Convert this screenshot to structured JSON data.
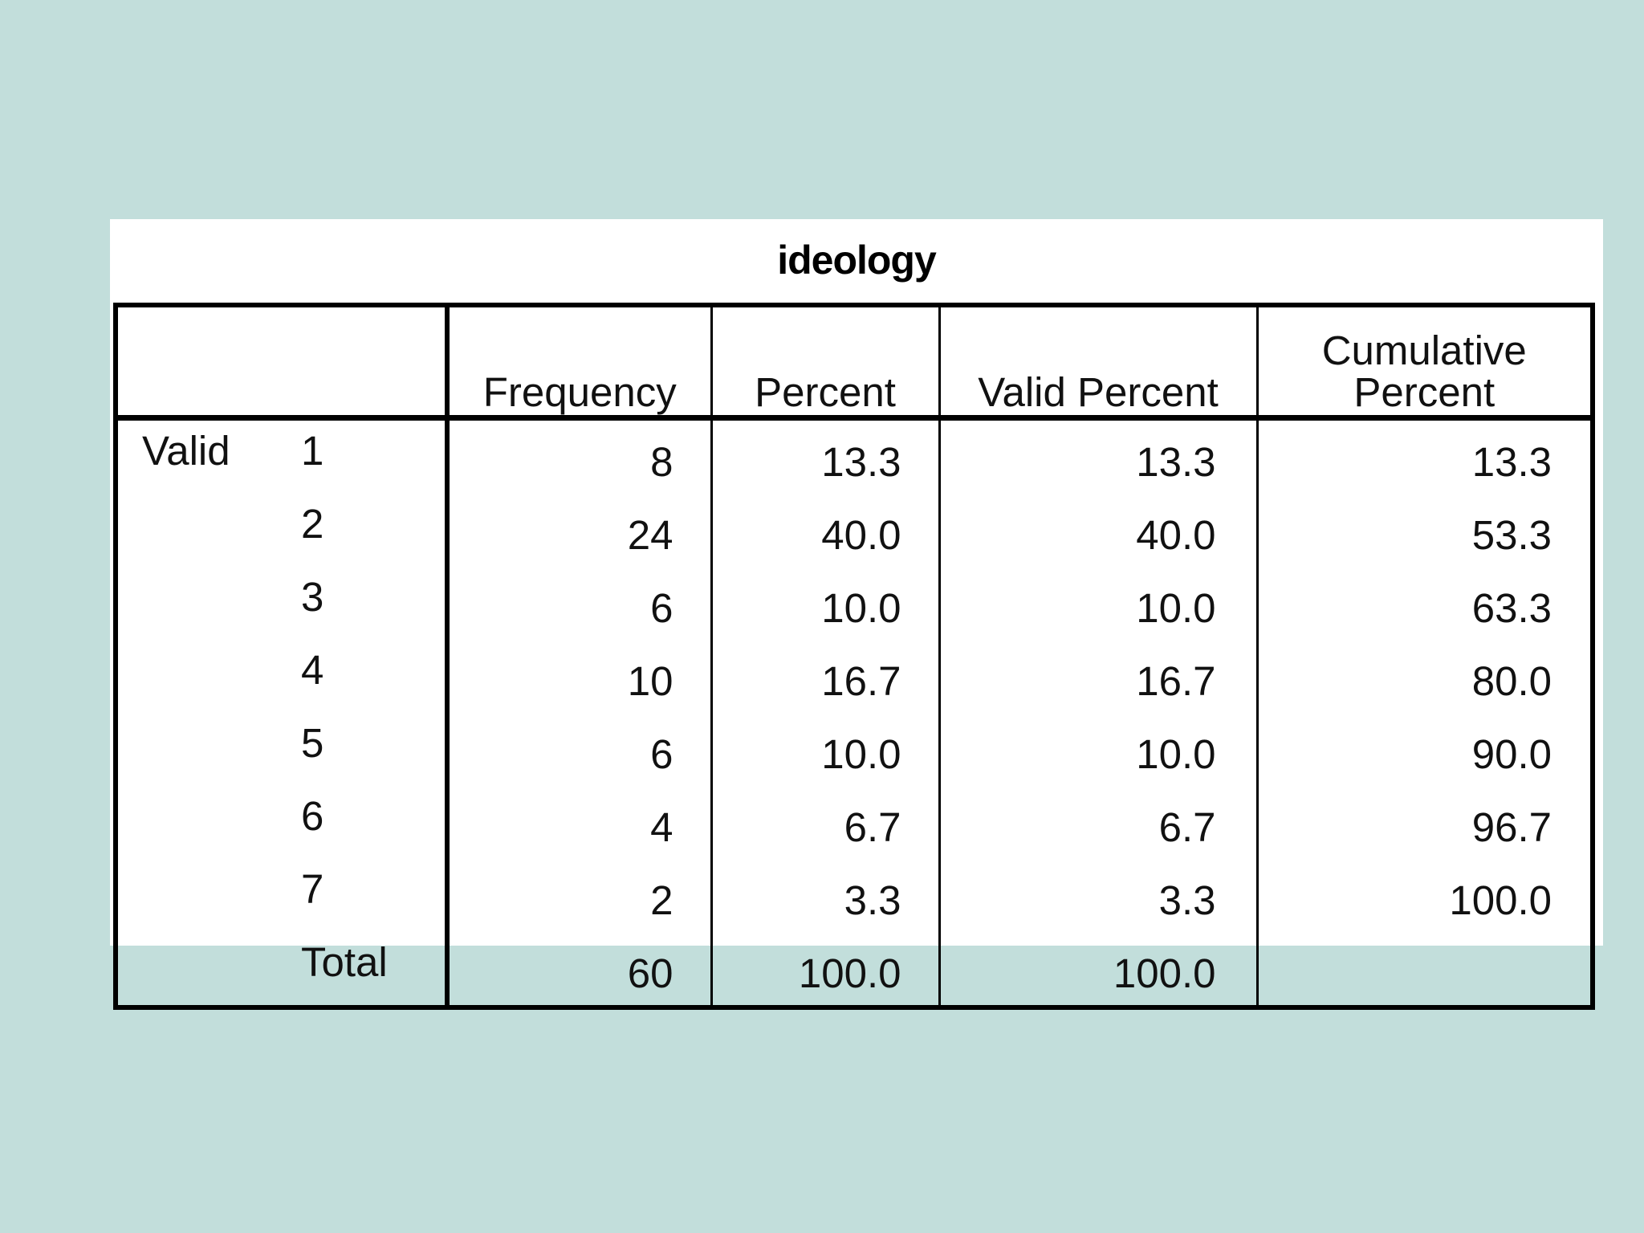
{
  "table": {
    "title": "ideology",
    "headers": {
      "frequency": "Frequency",
      "percent": "Percent",
      "valid_percent": "Valid Percent",
      "cumulative_line1": "Cumulative",
      "cumulative_line2": "Percent"
    },
    "group_label": "Valid",
    "rows": [
      {
        "value": "1",
        "frequency": "8",
        "percent": "13.3",
        "valid_percent": "13.3",
        "cumulative_percent": "13.3"
      },
      {
        "value": "2",
        "frequency": "24",
        "percent": "40.0",
        "valid_percent": "40.0",
        "cumulative_percent": "53.3"
      },
      {
        "value": "3",
        "frequency": "6",
        "percent": "10.0",
        "valid_percent": "10.0",
        "cumulative_percent": "63.3"
      },
      {
        "value": "4",
        "frequency": "10",
        "percent": "16.7",
        "valid_percent": "16.7",
        "cumulative_percent": "80.0"
      },
      {
        "value": "5",
        "frequency": "6",
        "percent": "10.0",
        "valid_percent": "10.0",
        "cumulative_percent": "90.0"
      },
      {
        "value": "6",
        "frequency": "4",
        "percent": "6.7",
        "valid_percent": "6.7",
        "cumulative_percent": "96.7"
      },
      {
        "value": "7",
        "frequency": "2",
        "percent": "3.3",
        "valid_percent": "3.3",
        "cumulative_percent": "100.0"
      },
      {
        "value": "Total",
        "frequency": "60",
        "percent": "100.0",
        "valid_percent": "100.0",
        "cumulative_percent": ""
      }
    ]
  }
}
